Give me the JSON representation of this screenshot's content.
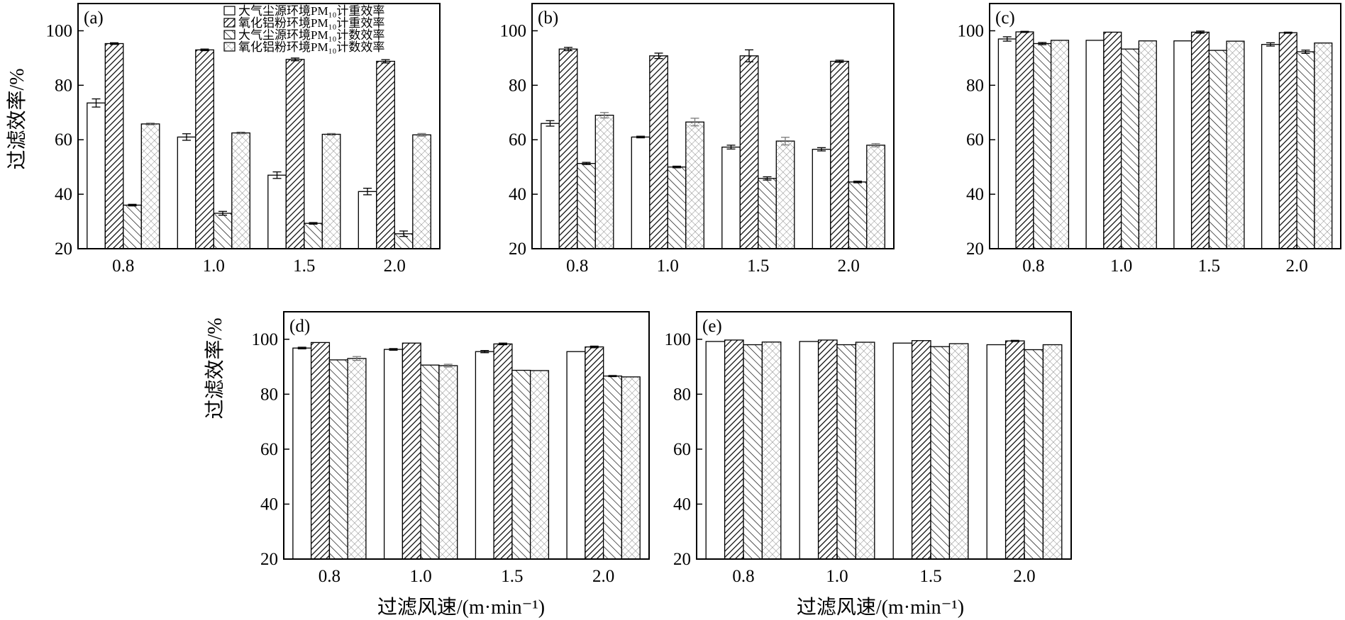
{
  "figure": {
    "ylabel": "过滤效率/%",
    "xlabel": "过滤风速/(m·min⁻¹)",
    "legend": [
      "大气尘源环境PM₁₀计重效率",
      "氧化铝粉环境PM₁₀计重效率",
      "大气尘源环境PM₁₀计数效率",
      "氧化铝粉环境PM₁₀计数效率"
    ]
  },
  "chart_data": [
    {
      "type": "bar",
      "panel": "(a)",
      "categories": [
        "0.8",
        "1.0",
        "1.5",
        "2.0"
      ],
      "ylim": [
        20,
        110
      ],
      "yticks": [
        "20",
        "40",
        "60",
        "80",
        "100"
      ],
      "legend_position": "top",
      "series": [
        {
          "name": "大气尘源环境PM₁₀计重效率",
          "values": [
            73.5,
            61.0,
            47.0,
            41.0
          ],
          "errors": [
            1.5,
            1.2,
            1.2,
            1.2
          ]
        },
        {
          "name": "氧化铝粉环境PM₁₀计重效率",
          "values": [
            95.3,
            93.0,
            89.5,
            88.8
          ],
          "errors": [
            0.3,
            0.3,
            0.5,
            0.6
          ]
        },
        {
          "name": "大气尘源环境PM₁₀计数效率",
          "values": [
            36.0,
            33.0,
            29.3,
            25.5
          ],
          "errors": [
            0.3,
            0.7,
            0.3,
            1.0
          ]
        },
        {
          "name": "氧化铝粉环境PM₁₀计数效率",
          "values": [
            65.8,
            62.5,
            62.0,
            61.8
          ],
          "errors": [
            0.3,
            0.3,
            0.3,
            0.5
          ]
        }
      ]
    },
    {
      "type": "bar",
      "panel": "(b)",
      "categories": [
        "0.8",
        "1.0",
        "1.5",
        "2.0"
      ],
      "ylim": [
        20,
        110
      ],
      "yticks": [
        "20",
        "40",
        "60",
        "80",
        "100"
      ],
      "series": [
        {
          "name": "大气尘源环境PM₁₀计重效率",
          "values": [
            66.0,
            61.0,
            57.3,
            56.5
          ],
          "errors": [
            1.0,
            0.3,
            0.7,
            0.6
          ]
        },
        {
          "name": "氧化铝粉环境PM₁₀计重效率",
          "values": [
            93.3,
            90.8,
            90.8,
            88.8
          ],
          "errors": [
            0.6,
            1.0,
            2.2,
            0.4
          ]
        },
        {
          "name": "大气尘源环境PM₁₀计数效率",
          "values": [
            51.3,
            50.0,
            45.8,
            44.5
          ],
          "errors": [
            0.4,
            0.3,
            0.6,
            0.3
          ]
        },
        {
          "name": "氧化铝粉环境PM₁₀计数效率",
          "values": [
            69.0,
            66.5,
            59.5,
            58.0
          ],
          "errors": [
            1.0,
            1.4,
            1.4,
            0.6
          ]
        }
      ]
    },
    {
      "type": "bar",
      "panel": "(c)",
      "categories": [
        "0.8",
        "1.0",
        "1.5",
        "2.0"
      ],
      "ylim": [
        20,
        110
      ],
      "yticks": [
        "20",
        "40",
        "60",
        "80",
        "100"
      ],
      "series": [
        {
          "name": "大气尘源环境PM₁₀计重效率",
          "values": [
            97.0,
            96.5,
            96.3,
            95.0
          ],
          "errors": [
            0.8,
            0,
            0,
            0.6
          ]
        },
        {
          "name": "氧化铝粉环境PM₁₀计重效率",
          "values": [
            99.6,
            99.5,
            99.5,
            99.3
          ],
          "errors": [
            0.2,
            0,
            0.4,
            0.2
          ]
        },
        {
          "name": "大气尘源环境PM₁₀计数效率",
          "values": [
            95.3,
            93.3,
            92.8,
            92.3
          ],
          "errors": [
            0.4,
            0,
            0,
            0.6
          ]
        },
        {
          "name": "氧化铝粉环境PM₁₀计数效率",
          "values": [
            96.5,
            96.3,
            96.2,
            95.5
          ],
          "errors": [
            0,
            0,
            0,
            0
          ]
        }
      ]
    },
    {
      "type": "bar",
      "panel": "(d)",
      "categories": [
        "0.8",
        "1.0",
        "1.5",
        "2.0"
      ],
      "ylim": [
        20,
        110
      ],
      "yticks": [
        "20",
        "40",
        "60",
        "80",
        "100"
      ],
      "series": [
        {
          "name": "大气尘源环境PM₁₀计重效率",
          "values": [
            96.8,
            96.3,
            95.5,
            95.5
          ],
          "errors": [
            0.3,
            0.3,
            0.4,
            0
          ]
        },
        {
          "name": "氧化铝粉环境PM₁₀计重效率",
          "values": [
            98.8,
            98.6,
            98.3,
            97.2
          ],
          "errors": [
            0,
            0,
            0.3,
            0.3
          ]
        },
        {
          "name": "大气尘源环境PM₁₀计数效率",
          "values": [
            92.5,
            90.6,
            88.7,
            86.6
          ],
          "errors": [
            0,
            0,
            0,
            0.2
          ]
        },
        {
          "name": "氧化铝粉环境PM₁₀计数效率",
          "values": [
            93.0,
            90.4,
            88.6,
            86.3
          ],
          "errors": [
            0.7,
            0.5,
            0,
            0
          ]
        }
      ]
    },
    {
      "type": "bar",
      "panel": "(e)",
      "categories": [
        "0.8",
        "1.0",
        "1.5",
        "2.0"
      ],
      "ylim": [
        20,
        110
      ],
      "yticks": [
        "20",
        "40",
        "60",
        "80",
        "100"
      ],
      "series": [
        {
          "name": "大气尘源环境PM₁₀计重效率",
          "values": [
            99.2,
            99.2,
            98.6,
            98.0
          ],
          "errors": [
            0,
            0,
            0,
            0
          ]
        },
        {
          "name": "氧化铝粉环境PM₁₀计重效率",
          "values": [
            99.7,
            99.7,
            99.5,
            99.4
          ],
          "errors": [
            0,
            0,
            0,
            0.2
          ]
        },
        {
          "name": "大气尘源环境PM₁₀计数效率",
          "values": [
            98.0,
            98.0,
            97.3,
            96.2
          ],
          "errors": [
            0,
            0,
            0,
            0
          ]
        },
        {
          "name": "氧化铝粉环境PM₁₀计数效率",
          "values": [
            99.0,
            98.9,
            98.4,
            98.0
          ],
          "errors": [
            0,
            0,
            0,
            0
          ]
        }
      ]
    }
  ]
}
